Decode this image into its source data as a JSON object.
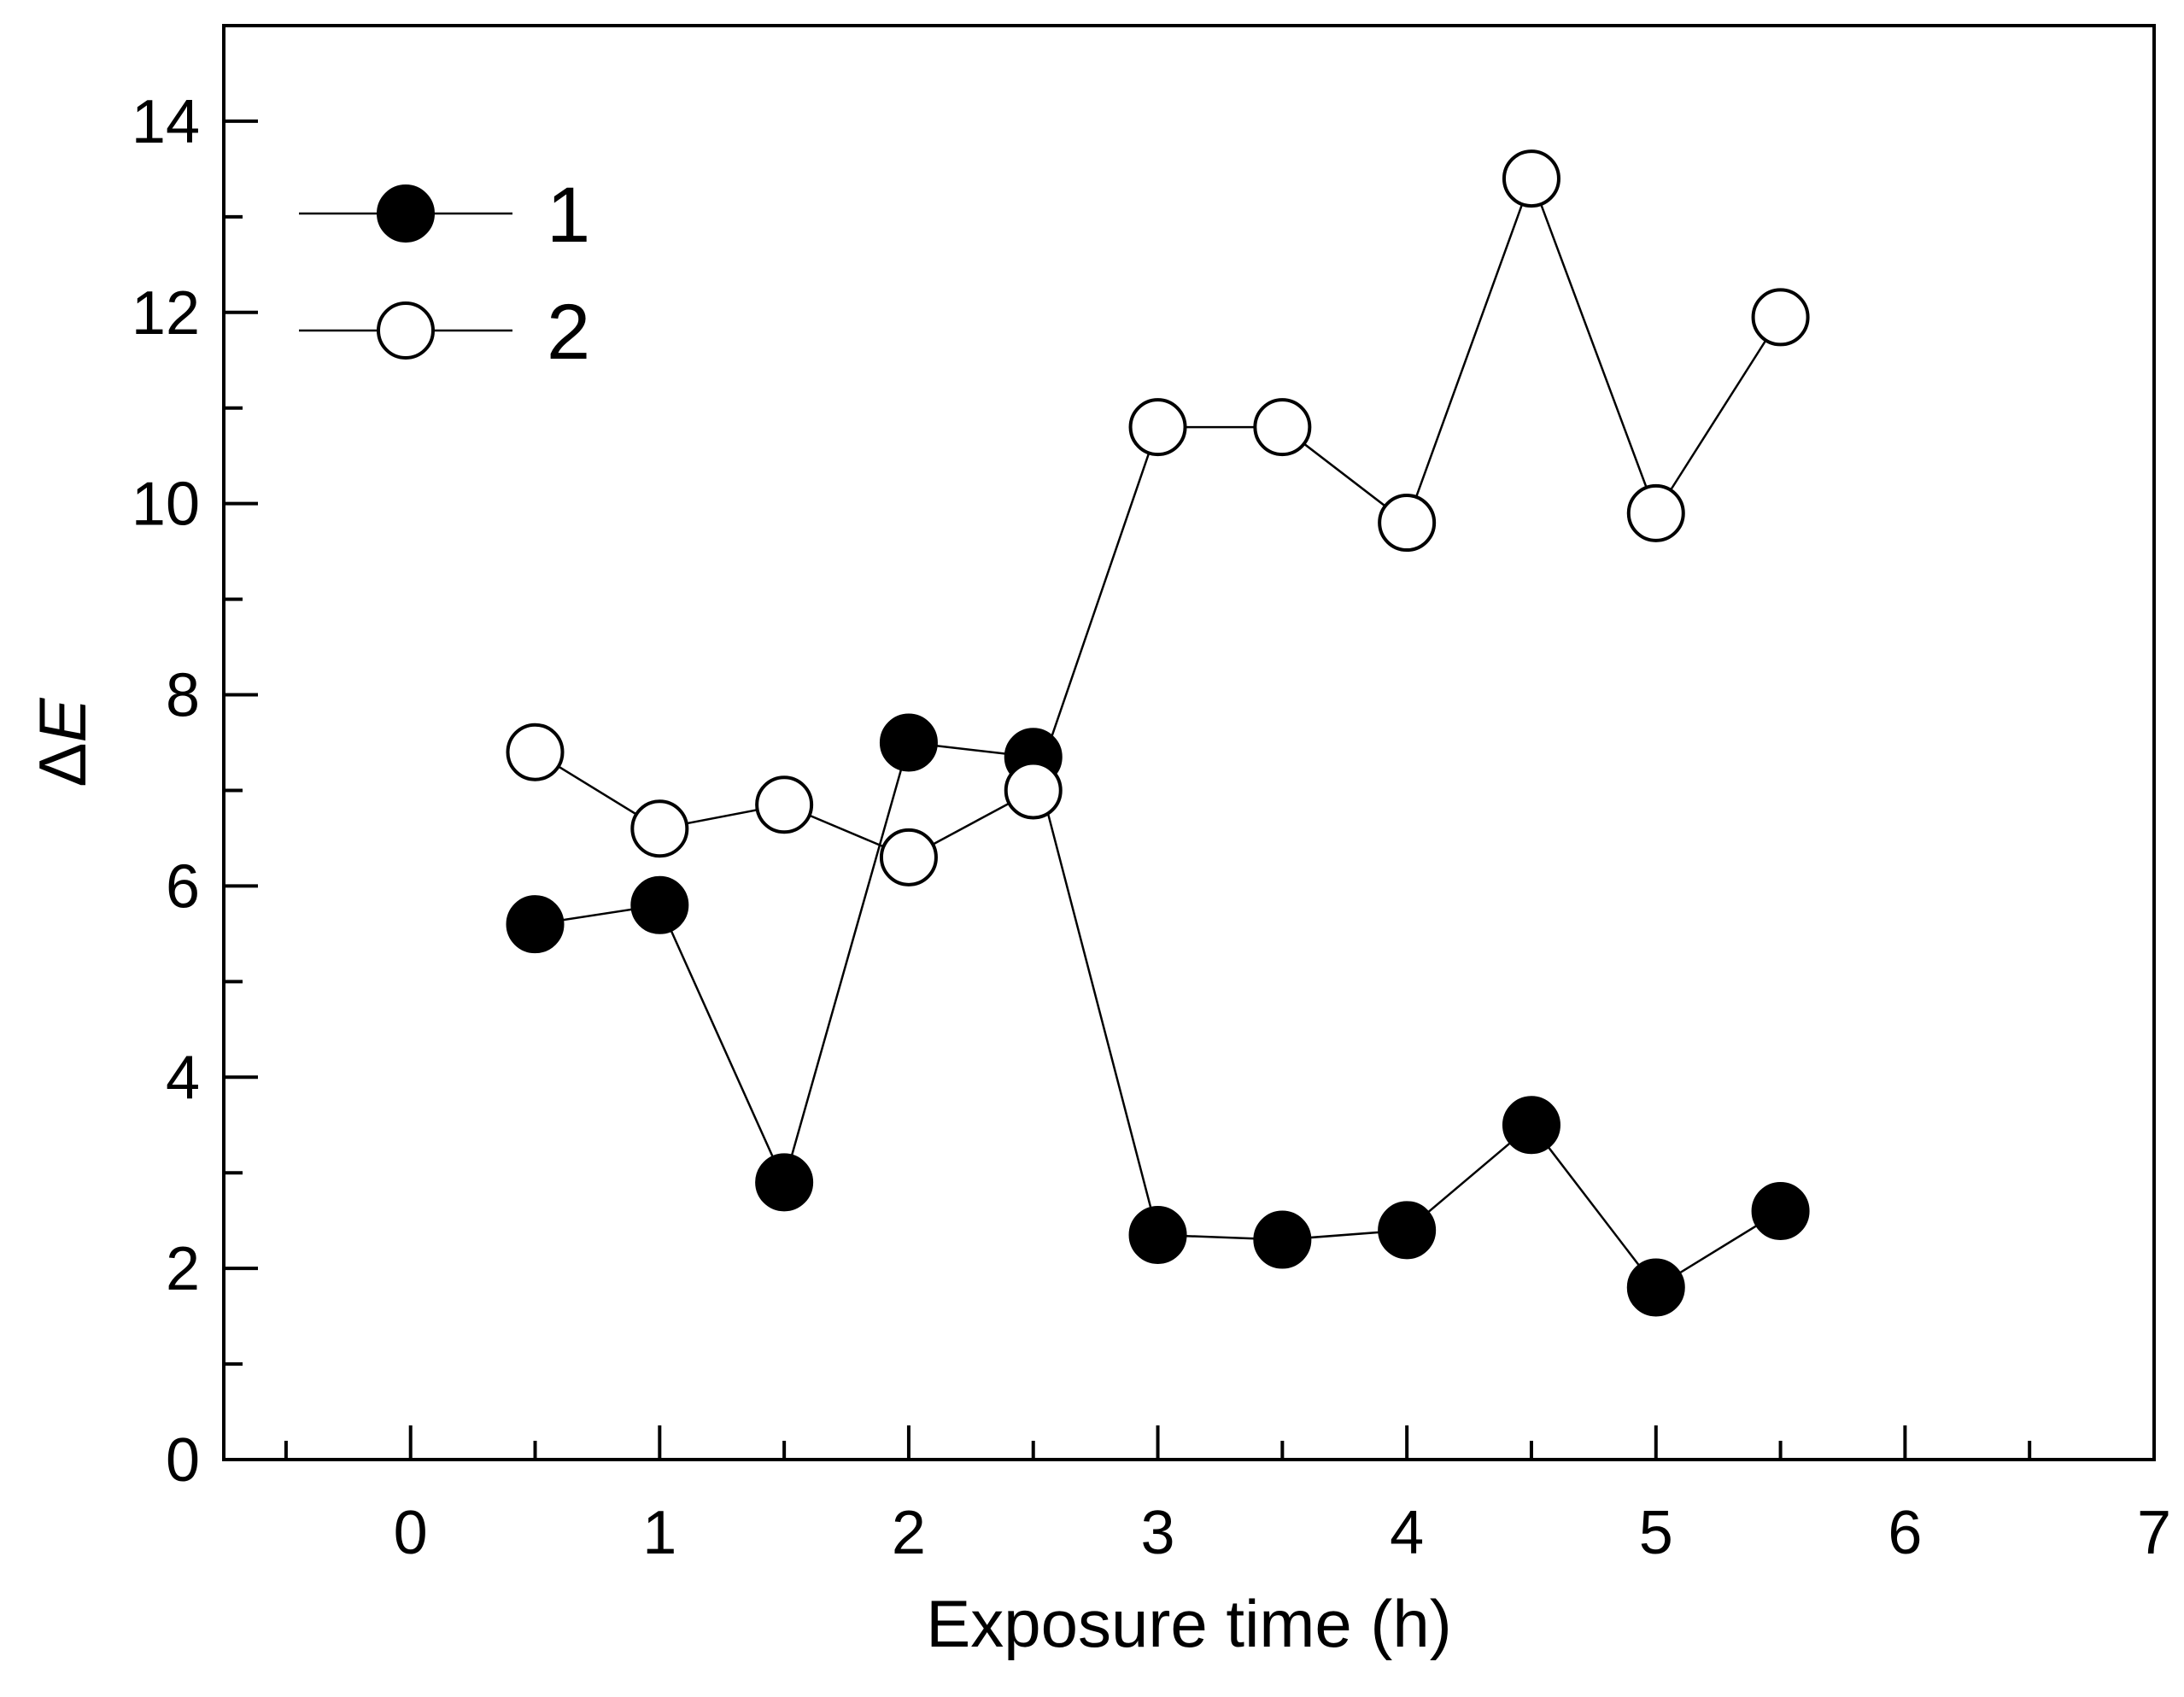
{
  "chart_data": {
    "type": "line",
    "title": "",
    "xlabel": "Exposure time (h)",
    "ylabel_symbol": "Δ",
    "ylabel_variable": "E",
    "xlim": [
      -0.75,
      7
    ],
    "ylim": [
      0,
      15
    ],
    "x_ticks": [
      0,
      1,
      2,
      3,
      4,
      5,
      6,
      7
    ],
    "x_tick_labels": [
      "0",
      "1",
      "2",
      "3",
      "4",
      "5",
      "6",
      "7"
    ],
    "x_minor_step": 0.5,
    "y_ticks": [
      0,
      2,
      4,
      6,
      8,
      10,
      12,
      14
    ],
    "y_tick_labels": [
      "0",
      "2",
      "4",
      "6",
      "8",
      "10",
      "12",
      "14"
    ],
    "y_minor_step": 1,
    "grid": false,
    "legend_position": "top-left",
    "series": [
      {
        "name": "1",
        "marker": "filled-circle",
        "marker_color": "#000000",
        "line_color": "#000000",
        "x": [
          0.5,
          1,
          1.5,
          2,
          2.5,
          3,
          3.5,
          4,
          4.5,
          5,
          5.5
        ],
        "y": [
          5.6,
          5.8,
          2.9,
          7.5,
          7.35,
          2.35,
          2.3,
          2.4,
          3.5,
          1.8,
          2.6
        ]
      },
      {
        "name": "2",
        "marker": "open-circle",
        "marker_color": "#ffffff",
        "line_color": "#000000",
        "x": [
          0.5,
          1,
          1.5,
          2,
          2.5,
          3,
          3.5,
          4,
          4.5,
          5,
          5.5
        ],
        "y": [
          7.4,
          6.6,
          6.85,
          6.3,
          7.0,
          10.8,
          10.8,
          9.8,
          13.4,
          9.9,
          11.95
        ]
      }
    ]
  }
}
